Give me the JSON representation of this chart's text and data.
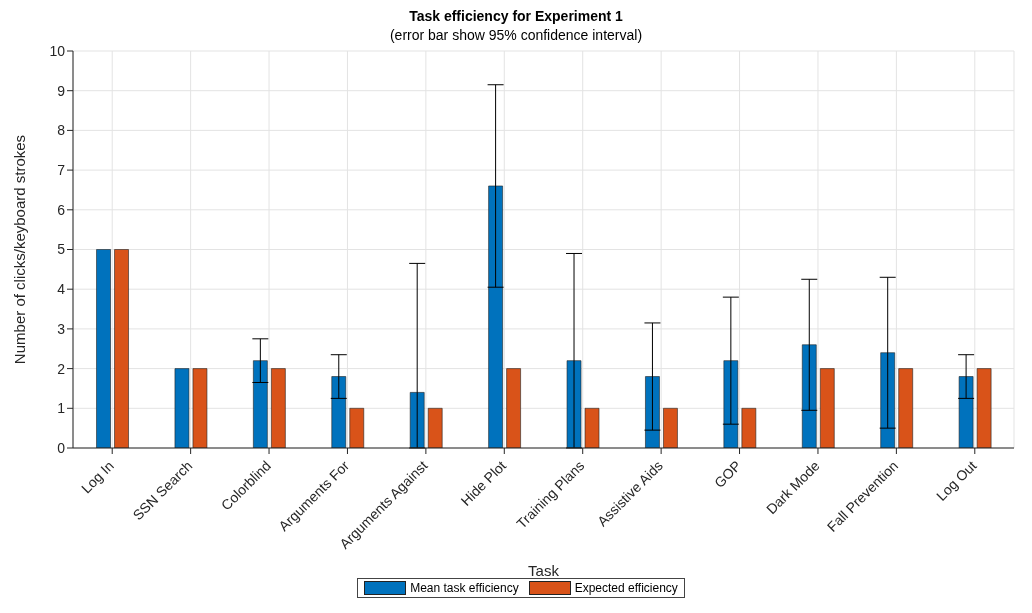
{
  "chart_data": {
    "type": "bar",
    "title": "Task efficiency for Experiment 1",
    "subtitle": "(error bar show 95% confidence interval)",
    "xlabel": "Task",
    "ylabel": "Number of clicks/keyboard strokes",
    "categories": [
      "Log In",
      "SSN Search",
      "Colorblind",
      "Arguments For",
      "Arguments Against",
      "Hide Plot",
      "Training Plans",
      "Assistive Aids",
      "GOP",
      "Dark Mode",
      "Fall Prevention",
      "Log Out"
    ],
    "series": [
      {
        "name": "Mean task efficiency",
        "color": "#0072bd",
        "values": [
          5,
          2,
          2.2,
          1.8,
          1.4,
          6.6,
          2.2,
          1.8,
          2.2,
          2.6,
          2.4,
          1.8
        ],
        "errors": [
          null,
          null,
          0.55,
          0.55,
          [
            0,
            4.65
          ],
          2.55,
          [
            0,
            4.9
          ],
          1.35,
          1.6,
          1.65,
          1.9,
          0.55
        ]
      },
      {
        "name": "Expected efficiency",
        "color": "#d95319",
        "values": [
          5,
          2,
          2,
          1,
          1,
          2,
          1,
          1,
          1,
          2,
          2,
          2
        ]
      }
    ],
    "ylim": [
      0,
      10
    ],
    "yticks": [
      0,
      1,
      2,
      3,
      4,
      5,
      6,
      7,
      8,
      9,
      10
    ],
    "grid": true,
    "legend": "bottom"
  }
}
